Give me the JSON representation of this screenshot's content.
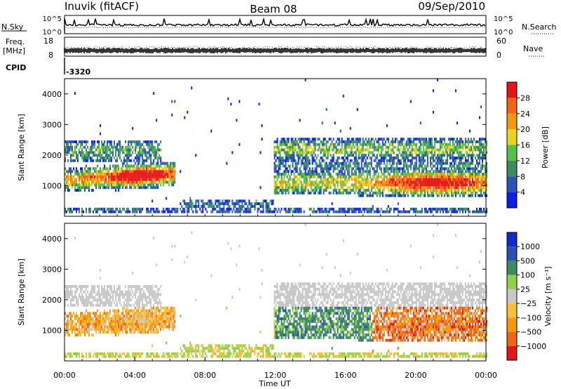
{
  "header": {
    "site": "Inuvik (fitACF)",
    "beam": "Beam 08",
    "date": "09/Sep/2010"
  },
  "strip_top": {
    "left_label": "N.Sky",
    "left_ticks": [
      "10^5",
      "10^0"
    ],
    "right_ticks": [
      "10^5",
      "10^0"
    ],
    "right_label": "N.Search"
  },
  "strip_mid": {
    "left_label": [
      "Freq.",
      "[MHz]"
    ],
    "left_ticks": [
      "18",
      "8"
    ],
    "right_ticks": [
      "60",
      "0"
    ],
    "right_label": "Nave"
  },
  "cpid": {
    "label": "CPID",
    "value": "-3320"
  },
  "colors": {
    "power": [
      "#0a1ee6",
      "#2a54b5",
      "#3d8a5e",
      "#52c24a",
      "#ebd21e",
      "#f29a0f",
      "#f06414",
      "#e61414"
    ],
    "velocity": [
      "#e61414",
      "#f06414",
      "#f29a0f",
      "#f5be3c",
      "#c8c8c8",
      "#8fd24a",
      "#3d8a5e",
      "#2a4fb2",
      "#1428c8"
    ]
  },
  "chart_data": [
    {
      "type": "heatmap",
      "panel": "power",
      "ylabel": "Slant Range [km]",
      "yticks": [
        1000,
        2000,
        3000,
        4000
      ],
      "xticks": [
        "00:00",
        "04:00",
        "08:00",
        "12:00",
        "16:00",
        "20:00",
        "00:00"
      ],
      "colorbar": {
        "label": "Power [dB]",
        "ticks": [
          "4",
          "8",
          "12",
          "16",
          "20",
          "24",
          "28"
        ]
      }
    },
    {
      "type": "heatmap",
      "panel": "velocity",
      "ylabel": "Slant Range [km]",
      "yticks": [
        1000,
        2000,
        3000,
        4000
      ],
      "xticks": [
        "00:00",
        "04:00",
        "08:00",
        "12:00",
        "16:00",
        "20:00",
        "00:00"
      ],
      "xlabel": "Time UT",
      "colorbar": {
        "label": "Velocity [m s⁻¹]",
        "ticks": [
          "1000",
          "500",
          "100",
          "25",
          "−25",
          "−100",
          "−500",
          "−1000"
        ]
      }
    }
  ]
}
